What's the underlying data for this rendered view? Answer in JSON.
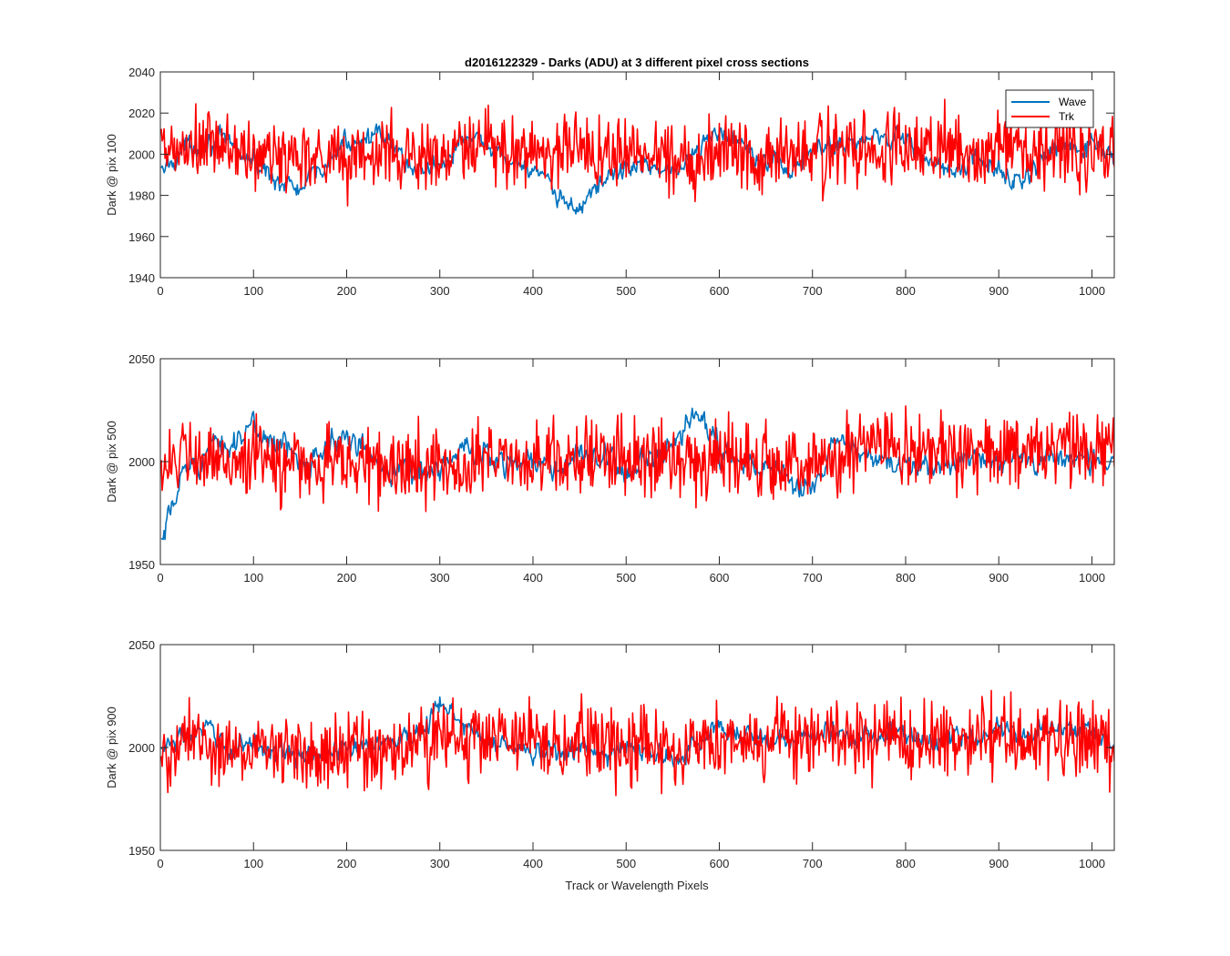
{
  "figure": {
    "title": "d2016122329 - Darks (ADU) at 3 different pixel cross sections",
    "xlabel": "Track or Wavelength Pixels",
    "legend": {
      "placement": "top-right",
      "entries": [
        "Wave",
        "Trk"
      ]
    },
    "colors": {
      "Wave": "#0072BD",
      "Trk": "#FF0000",
      "axis": "#262626"
    }
  },
  "chart_data": [
    {
      "type": "line",
      "ylabel": "Dark @ pix 100",
      "xlim": [
        0,
        1024
      ],
      "ylim": [
        1940,
        2040
      ],
      "xticks": [
        0,
        100,
        200,
        300,
        400,
        500,
        600,
        700,
        800,
        900,
        1000
      ],
      "yticks": [
        1940,
        1960,
        1980,
        2000,
        2020,
        2040
      ],
      "series": [
        {
          "name": "Wave",
          "x": [
            0,
            25,
            50,
            75,
            100,
            125,
            150,
            175,
            200,
            225,
            250,
            275,
            300,
            325,
            350,
            375,
            400,
            425,
            450,
            475,
            500,
            525,
            550,
            575,
            600,
            625,
            650,
            675,
            700,
            725,
            750,
            775,
            800,
            825,
            850,
            875,
            900,
            925,
            950,
            975,
            1000,
            1024
          ],
          "values": [
            1990,
            2003,
            2007,
            2004,
            1996,
            1988,
            1982,
            1994,
            2006,
            2010,
            2003,
            1992,
            1995,
            2007,
            2004,
            1997,
            1994,
            1978,
            1974,
            1988,
            1993,
            1996,
            1991,
            2000,
            2012,
            2006,
            1999,
            1992,
            2001,
            2005,
            2006,
            2010,
            2008,
            1996,
            1991,
            1997,
            1992,
            1986,
            1999,
            2003,
            2004,
            1997
          ]
        },
        {
          "name": "Trk",
          "x": [
            0,
            25,
            50,
            75,
            100,
            125,
            150,
            175,
            200,
            225,
            250,
            275,
            300,
            325,
            350,
            375,
            400,
            425,
            450,
            475,
            500,
            525,
            550,
            575,
            600,
            625,
            650,
            675,
            700,
            725,
            750,
            775,
            800,
            825,
            850,
            875,
            900,
            925,
            950,
            975,
            1000,
            1024
          ],
          "values": [
            2000,
            2001,
            2004,
            2003,
            1998,
            1999,
            2000,
            2001,
            1997,
            2000,
            2001,
            1999,
            1997,
            2002,
            2003,
            2001,
            2002,
            2001,
            2004,
            2001,
            2000,
            2002,
            1999,
            1998,
            2003,
            2002,
            2000,
            1999,
            2001,
            2002,
            2000,
            2003,
            2004,
            2002,
            2003,
            2001,
            2002,
            2003,
            2004,
            2002,
            2004,
            2003
          ]
        }
      ]
    },
    {
      "type": "line",
      "ylabel": "Dark @ pix 500",
      "xlim": [
        0,
        1024
      ],
      "ylim": [
        1950,
        2050
      ],
      "xticks": [
        0,
        100,
        200,
        300,
        400,
        500,
        600,
        700,
        800,
        900,
        1000
      ],
      "yticks": [
        1950,
        2000,
        2050
      ],
      "series": [
        {
          "name": "Wave",
          "x": [
            0,
            10,
            25,
            50,
            75,
            100,
            125,
            150,
            175,
            200,
            225,
            250,
            275,
            300,
            325,
            350,
            375,
            400,
            425,
            450,
            475,
            500,
            525,
            550,
            575,
            600,
            625,
            650,
            675,
            700,
            725,
            750,
            775,
            800,
            825,
            850,
            875,
            900,
            925,
            950,
            975,
            1000,
            1024
          ],
          "values": [
            1956,
            1972,
            1996,
            2004,
            2010,
            2016,
            2009,
            2001,
            2007,
            2011,
            2003,
            1997,
            1995,
            1997,
            2005,
            2004,
            2000,
            2001,
            1995,
            2004,
            2000,
            1996,
            2000,
            2004,
            2025,
            2005,
            1999,
            1997,
            1990,
            1986,
            2009,
            2006,
            1998,
            1997,
            1999,
            2000,
            2003,
            2001,
            2001,
            2003,
            2002,
            2000,
            2000
          ]
        },
        {
          "name": "Trk",
          "x": [
            0,
            25,
            50,
            75,
            100,
            125,
            150,
            175,
            200,
            225,
            250,
            275,
            300,
            325,
            350,
            375,
            400,
            425,
            450,
            475,
            500,
            525,
            550,
            575,
            600,
            625,
            650,
            675,
            700,
            725,
            750,
            775,
            800,
            825,
            850,
            875,
            900,
            925,
            950,
            975,
            1000,
            1024
          ],
          "values": [
            2002,
            2000,
            1999,
            2001,
            2002,
            1998,
            2000,
            1998,
            2001,
            1999,
            1996,
            1998,
            1999,
            1997,
            2001,
            2002,
            2000,
            2001,
            2003,
            2000,
            2002,
            2003,
            2001,
            2004,
            2002,
            2000,
            2001,
            1999,
            2000,
            2002,
            2003,
            2008,
            2001,
            2004,
            2005,
            2003,
            2005,
            2004,
            2006,
            2005,
            2004,
            2006
          ]
        }
      ]
    },
    {
      "type": "line",
      "ylabel": "Dark @ pix 900",
      "xlim": [
        0,
        1024
      ],
      "ylim": [
        1950,
        2050
      ],
      "xticks": [
        0,
        100,
        200,
        300,
        400,
        500,
        600,
        700,
        800,
        900,
        1000
      ],
      "yticks": [
        1950,
        2000,
        2050
      ],
      "series": [
        {
          "name": "Wave",
          "x": [
            0,
            25,
            50,
            75,
            100,
            125,
            150,
            175,
            200,
            225,
            250,
            275,
            300,
            325,
            350,
            375,
            400,
            425,
            450,
            475,
            500,
            525,
            550,
            575,
            600,
            625,
            650,
            675,
            700,
            725,
            750,
            775,
            800,
            825,
            850,
            875,
            900,
            925,
            950,
            975,
            1000,
            1024
          ],
          "values": [
            1999,
            2005,
            2008,
            1999,
            2003,
            1998,
            1995,
            1997,
            1999,
            2002,
            2004,
            2006,
            2021,
            2011,
            2004,
            2001,
            1996,
            1998,
            2000,
            1994,
            2001,
            1998,
            1994,
            2001,
            2011,
            2007,
            2004,
            2002,
            2006,
            2008,
            2004,
            2006,
            2007,
            2002,
            2005,
            2004,
            2009,
            2006,
            2009,
            2010,
            2008,
            2000
          ]
        },
        {
          "name": "Trk",
          "x": [
            0,
            25,
            50,
            75,
            100,
            125,
            150,
            175,
            200,
            225,
            250,
            275,
            300,
            325,
            350,
            375,
            400,
            425,
            450,
            475,
            500,
            525,
            550,
            575,
            600,
            625,
            650,
            675,
            700,
            725,
            750,
            775,
            800,
            825,
            850,
            875,
            900,
            925,
            950,
            975,
            1000,
            1024
          ],
          "values": [
            1992,
            2003,
            2001,
            1998,
            2000,
            1999,
            2001,
            1998,
            2000,
            1997,
            1999,
            2000,
            2003,
            2004,
            2007,
            2002,
            2003,
            2001,
            2003,
            2000,
            2002,
            2004,
            1998,
            2003,
            2005,
            2004,
            2001,
            2002,
            2003,
            2004,
            2002,
            2005,
            2004,
            2003,
            2006,
            2004,
            2005,
            2006,
            2006,
            2005,
            2004,
            2001
          ]
        }
      ]
    }
  ]
}
